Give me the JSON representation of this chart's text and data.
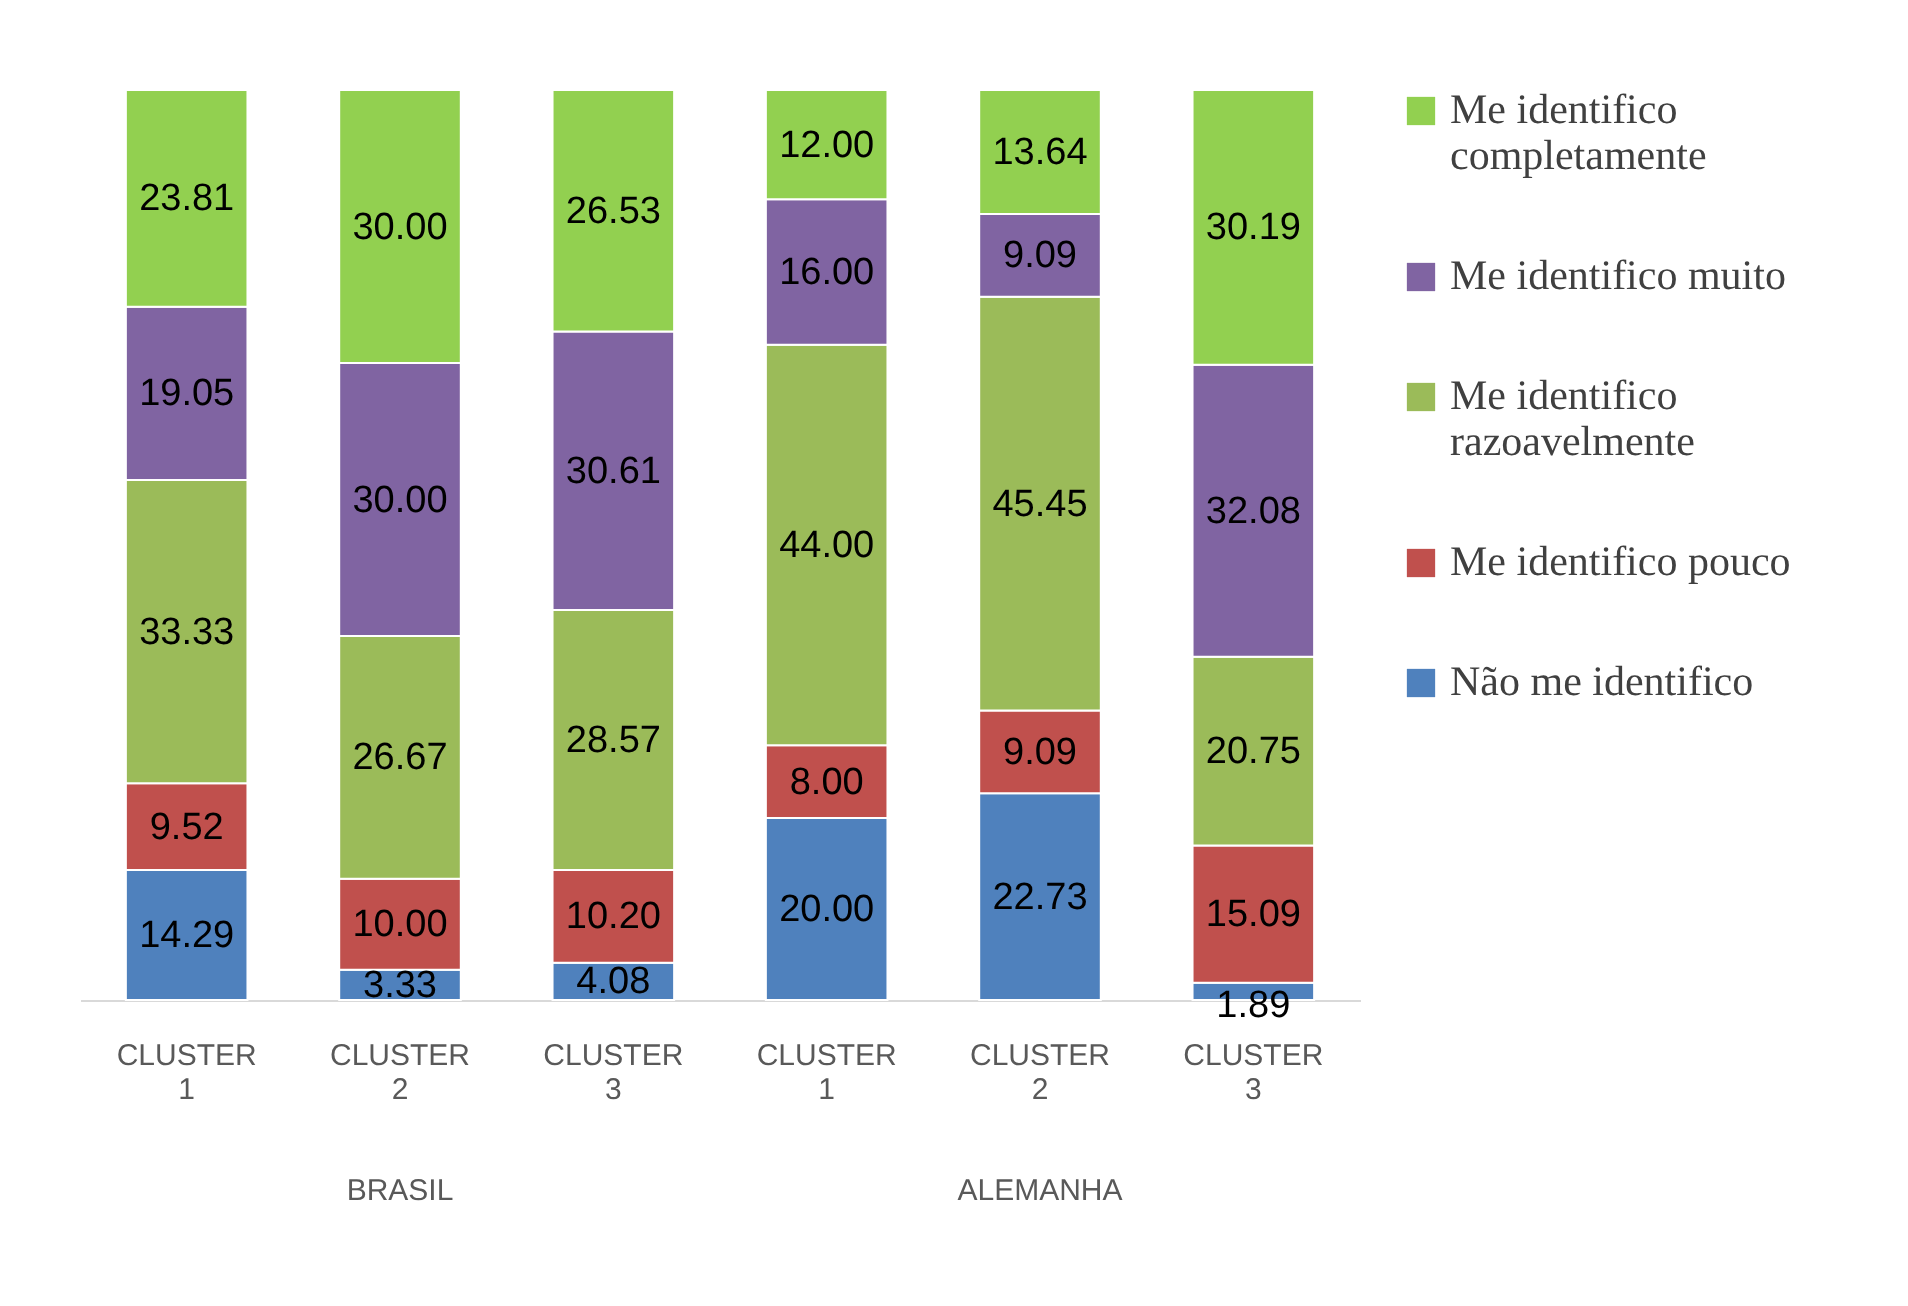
{
  "chart_data": {
    "type": "bar",
    "stacked": true,
    "legend": "right",
    "categories": [
      "CLUSTER 1",
      "CLUSTER 2",
      "CLUSTER 3",
      "CLUSTER 1",
      "CLUSTER 2",
      "CLUSTER 3"
    ],
    "annotations": [
      "BRASIL",
      "ALEMANHA"
    ],
    "series": [
      {
        "name": "Não me identifico",
        "color": "#4f81bd",
        "values": [
          14.29,
          3.33,
          4.08,
          20.0,
          22.73,
          1.89
        ],
        "value_labels": [
          "14.29",
          "3.33",
          "4.08",
          "20.00",
          "22.73",
          "1.89"
        ]
      },
      {
        "name": "Me identifico pouco",
        "color": "#c0504d",
        "values": [
          9.52,
          10.0,
          10.2,
          8.0,
          9.09,
          15.09
        ],
        "value_labels": [
          "9.52",
          "10.00",
          "10.20",
          "8.00",
          "9.09",
          "15.09"
        ]
      },
      {
        "name": "Me identifico razoavelmente",
        "color": "#9bbb59",
        "values": [
          33.33,
          26.67,
          28.57,
          44.0,
          45.45,
          20.75
        ],
        "value_labels": [
          "33.33",
          "26.67",
          "28.57",
          "44.00",
          "45.45",
          "20.75"
        ]
      },
      {
        "name": "Me identifico muito",
        "color": "#8064a2",
        "values": [
          19.05,
          30.0,
          30.61,
          16.0,
          9.09,
          32.08
        ],
        "value_labels": [
          "19.05",
          "30.00",
          "30.61",
          "16.00",
          "9.09",
          "32.08"
        ]
      },
      {
        "name": "Me identifico completamente",
        "color": "#92d050",
        "values": [
          23.81,
          30.0,
          26.53,
          12.0,
          13.64,
          30.19
        ],
        "value_labels": [
          "23.81",
          "30.00",
          "26.53",
          "12.00",
          "13.64",
          "30.19"
        ]
      }
    ]
  }
}
